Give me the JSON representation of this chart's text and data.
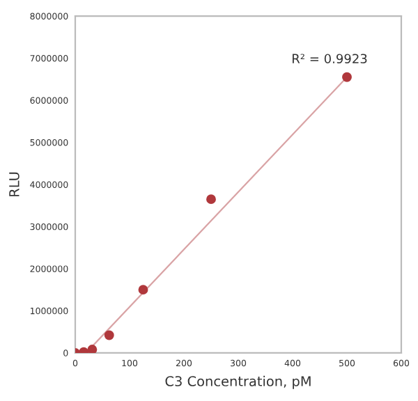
{
  "chart_data": {
    "type": "scatter",
    "xlabel": "C3 Concentration, pM",
    "ylabel": "RLU",
    "xlim": [
      0,
      600
    ],
    "xticks": [
      0,
      100,
      200,
      300,
      400,
      500,
      600
    ],
    "ylim": [
      0,
      8000000
    ],
    "yticks": [
      0,
      1000000,
      2000000,
      3000000,
      4000000,
      5000000,
      6000000,
      7000000,
      8000000
    ],
    "grid": false,
    "legend": false,
    "marker": "circle",
    "annotations": [
      "R² = 0.9923"
    ],
    "series": [
      {
        "color": "#b0383c",
        "x": [
          0,
          15.6,
          31.25,
          62.5,
          125,
          250,
          500
        ],
        "values": [
          0,
          20000,
          80000,
          420000,
          1500000,
          3650000,
          6550000
        ]
      },
      {
        "type": "line",
        "color": "#d9a3a5",
        "line_style": "solid",
        "marker": "none",
        "x": [
          20,
          500
        ],
        "values": [
          0,
          6550000
        ]
      }
    ]
  }
}
